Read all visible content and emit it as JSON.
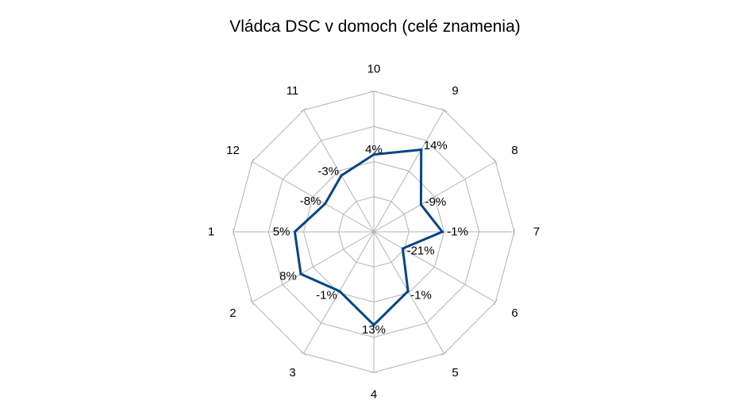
{
  "chart_data": {
    "type": "radar",
    "title": "Vládca DSC v domoch (celé znamenia)",
    "categories": [
      "10",
      "9",
      "8",
      "7",
      "6",
      "5",
      "4",
      "3",
      "2",
      "1",
      "12",
      "11"
    ],
    "series": [
      {
        "values": [
          4,
          14,
          -9,
          -1,
          -21,
          -1,
          13,
          -1,
          8,
          5,
          -8,
          -3
        ],
        "data_labels": [
          "4%",
          "14%",
          "-9%",
          "-1%",
          "-21%",
          "-1%",
          "13%",
          "-1%",
          "8%",
          "5%",
          "-8%",
          "-3%"
        ],
        "color": "#004586"
      }
    ],
    "rlim": [
      -40,
      40
    ],
    "rings": [
      -40,
      -20,
      0,
      20,
      40
    ],
    "grid": true,
    "grid_color": "#b3b3b3",
    "legend": "none"
  }
}
